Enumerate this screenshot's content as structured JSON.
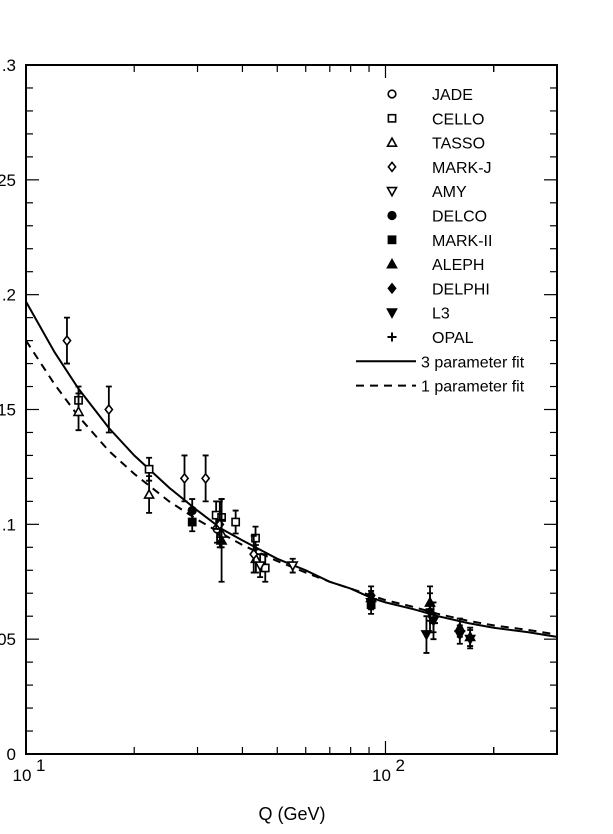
{
  "chart_data": {
    "type": "scatter",
    "xlabel": "Q (GeV)",
    "ylabel": "",
    "x_scale": "log",
    "xlim": [
      10,
      300
    ],
    "ylim": [
      0,
      0.3
    ],
    "x_ticks": [
      {
        "value": 10,
        "label": "10",
        "exp": "1"
      },
      {
        "value": 100,
        "label": "10",
        "exp": "2"
      }
    ],
    "y_ticks": [
      {
        "value": 0,
        "label": "0"
      },
      {
        "value": 0.05,
        "label": ".05"
      },
      {
        "value": 0.1,
        "label": ".1"
      },
      {
        "value": 0.15,
        "label": ".15"
      },
      {
        "value": 0.2,
        "label": ".2"
      },
      {
        "value": 0.25,
        "label": ".25"
      },
      {
        "value": 0.3,
        "label": ".3"
      }
    ],
    "legend_position": "top-right",
    "series": [
      {
        "name": "JADE",
        "marker": "circle-open",
        "points": [
          {
            "x": 34,
            "y": 0.098,
            "err": 0.006
          }
        ]
      },
      {
        "name": "CELLO",
        "marker": "square-open",
        "points": [
          {
            "x": 14,
            "y": 0.154,
            "err": 0.006
          },
          {
            "x": 22,
            "y": 0.124,
            "err": 0.005
          },
          {
            "x": 33.8,
            "y": 0.104,
            "err": 0.006
          },
          {
            "x": 35,
            "y": 0.103,
            "err": 0.008
          },
          {
            "x": 38.3,
            "y": 0.101,
            "err": 0.005
          },
          {
            "x": 43.5,
            "y": 0.094,
            "err": 0.005
          },
          {
            "x": 46.3,
            "y": 0.081,
            "err": 0.006
          }
        ]
      },
      {
        "name": "TASSO",
        "marker": "triangle-up-open",
        "points": [
          {
            "x": 14,
            "y": 0.149,
            "err": 0.008
          },
          {
            "x": 22,
            "y": 0.113,
            "err": 0.008
          },
          {
            "x": 35,
            "y": 0.096,
            "err": 0.006
          },
          {
            "x": 43.6,
            "y": 0.085,
            "err": 0.006
          }
        ]
      },
      {
        "name": "MARK-J",
        "marker": "diamond-open",
        "points": [
          {
            "x": 13,
            "y": 0.18,
            "err": 0.01
          },
          {
            "x": 17,
            "y": 0.15,
            "err": 0.01
          },
          {
            "x": 27.6,
            "y": 0.12,
            "err": 0.01
          },
          {
            "x": 31.6,
            "y": 0.12,
            "err": 0.01
          },
          {
            "x": 34.6,
            "y": 0.1,
            "err": 0.01
          },
          {
            "x": 43,
            "y": 0.087,
            "err": 0.008
          }
        ]
      },
      {
        "name": "AMY",
        "marker": "triangle-down-open",
        "points": [
          {
            "x": 55.2,
            "y": 0.082,
            "err": 0.003
          },
          {
            "x": 44.8,
            "y": 0.082,
            "err": 0.005
          }
        ]
      },
      {
        "name": "DELCO",
        "marker": "circle-filled",
        "points": [
          {
            "x": 29,
            "y": 0.106,
            "err": 0.005
          }
        ]
      },
      {
        "name": "MARK-II",
        "marker": "square-filled",
        "points": [
          {
            "x": 29,
            "y": 0.101,
            "err": 0.004
          },
          {
            "x": 91.2,
            "y": 0.065,
            "err": 0.004
          }
        ]
      },
      {
        "name": "ALEPH",
        "marker": "triangle-up-filled",
        "points": [
          {
            "x": 35,
            "y": 0.093,
            "err": 0.018
          },
          {
            "x": 91.2,
            "y": 0.068,
            "err": 0.003
          },
          {
            "x": 133,
            "y": 0.066,
            "err": 0.004
          },
          {
            "x": 161,
            "y": 0.055,
            "err": 0.004
          },
          {
            "x": 172,
            "y": 0.051,
            "err": 0.004
          }
        ]
      },
      {
        "name": "DELPHI",
        "marker": "diamond-filled",
        "points": [
          {
            "x": 91.2,
            "y": 0.069,
            "err": 0.004
          },
          {
            "x": 133,
            "y": 0.062,
            "err": 0.004
          }
        ]
      },
      {
        "name": "L3",
        "marker": "triangle-down-filled",
        "points": [
          {
            "x": 91.2,
            "y": 0.066,
            "err": 0.003
          },
          {
            "x": 130,
            "y": 0.052,
            "err": 0.008
          },
          {
            "x": 136,
            "y": 0.058,
            "err": 0.008
          },
          {
            "x": 161,
            "y": 0.052,
            "err": 0.004
          },
          {
            "x": 172,
            "y": 0.05,
            "err": 0.004
          }
        ]
      },
      {
        "name": "OPAL",
        "marker": "plus",
        "points": [
          {
            "x": 91.2,
            "y": 0.067,
            "err": 0.003
          },
          {
            "x": 133,
            "y": 0.063,
            "err": 0.01
          },
          {
            "x": 136,
            "y": 0.057,
            "err": 0.004
          }
        ]
      }
    ],
    "fits": [
      {
        "name": "3 parameter fit",
        "style": "solid",
        "x": [
          10,
          12,
          14,
          17,
          20,
          25,
          30,
          35,
          40,
          50,
          60,
          70,
          80,
          91.2,
          100,
          120,
          140,
          170,
          200,
          250,
          300
        ],
        "y": [
          0.197,
          0.175,
          0.159,
          0.142,
          0.13,
          0.116,
          0.106,
          0.098,
          0.093,
          0.085,
          0.08,
          0.075,
          0.072,
          0.068,
          0.066,
          0.063,
          0.06,
          0.057,
          0.055,
          0.053,
          0.051
        ]
      },
      {
        "name": "1 parameter fit",
        "style": "dashed",
        "x": [
          10,
          12,
          14,
          17,
          20,
          25,
          30,
          35,
          40,
          50,
          60,
          70,
          80,
          91.2,
          100,
          120,
          140,
          170,
          200,
          250,
          300
        ],
        "y": [
          0.18,
          0.161,
          0.147,
          0.132,
          0.122,
          0.11,
          0.102,
          0.096,
          0.091,
          0.084,
          0.079,
          0.075,
          0.072,
          0.069,
          0.067,
          0.064,
          0.061,
          0.058,
          0.056,
          0.054,
          0.052
        ]
      }
    ]
  }
}
